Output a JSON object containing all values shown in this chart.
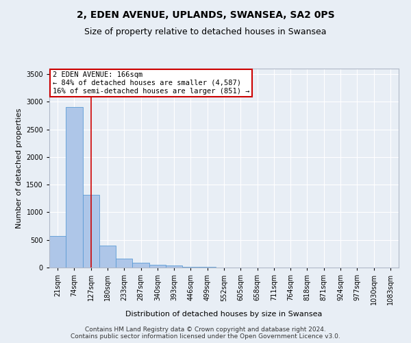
{
  "title": "2, EDEN AVENUE, UPLANDS, SWANSEA, SA2 0PS",
  "subtitle": "Size of property relative to detached houses in Swansea",
  "xlabel": "Distribution of detached houses by size in Swansea",
  "ylabel": "Number of detached properties",
  "bar_labels": [
    "21sqm",
    "74sqm",
    "127sqm",
    "180sqm",
    "233sqm",
    "287sqm",
    "340sqm",
    "393sqm",
    "446sqm",
    "499sqm",
    "552sqm",
    "605sqm",
    "658sqm",
    "711sqm",
    "764sqm",
    "818sqm",
    "871sqm",
    "924sqm",
    "977sqm",
    "1030sqm",
    "1083sqm"
  ],
  "bar_values": [
    570,
    2900,
    1310,
    400,
    160,
    90,
    55,
    40,
    15,
    8,
    4,
    3,
    2,
    1,
    1,
    1,
    1,
    1,
    1,
    1,
    1
  ],
  "bar_color": "#aec6e8",
  "bar_edge_color": "#5b9bd5",
  "vline_x": 2.5,
  "annotation_title": "2 EDEN AVENUE: 166sqm",
  "annotation_line1": "← 84% of detached houses are smaller (4,587)",
  "annotation_line2": "16% of semi-detached houses are larger (851) →",
  "annotation_box_color": "#ffffff",
  "annotation_border_color": "#cc0000",
  "vline_color": "#cc0000",
  "ylim": [
    0,
    3600
  ],
  "yticks": [
    0,
    500,
    1000,
    1500,
    2000,
    2500,
    3000,
    3500
  ],
  "footer_line1": "Contains HM Land Registry data © Crown copyright and database right 2024.",
  "footer_line2": "Contains public sector information licensed under the Open Government Licence v3.0.",
  "bg_color": "#e8eef5",
  "plot_bg_color": "#e8eef5",
  "title_fontsize": 10,
  "subtitle_fontsize": 9,
  "axis_label_fontsize": 8,
  "tick_fontsize": 7,
  "annotation_fontsize": 7.5,
  "footer_fontsize": 6.5
}
